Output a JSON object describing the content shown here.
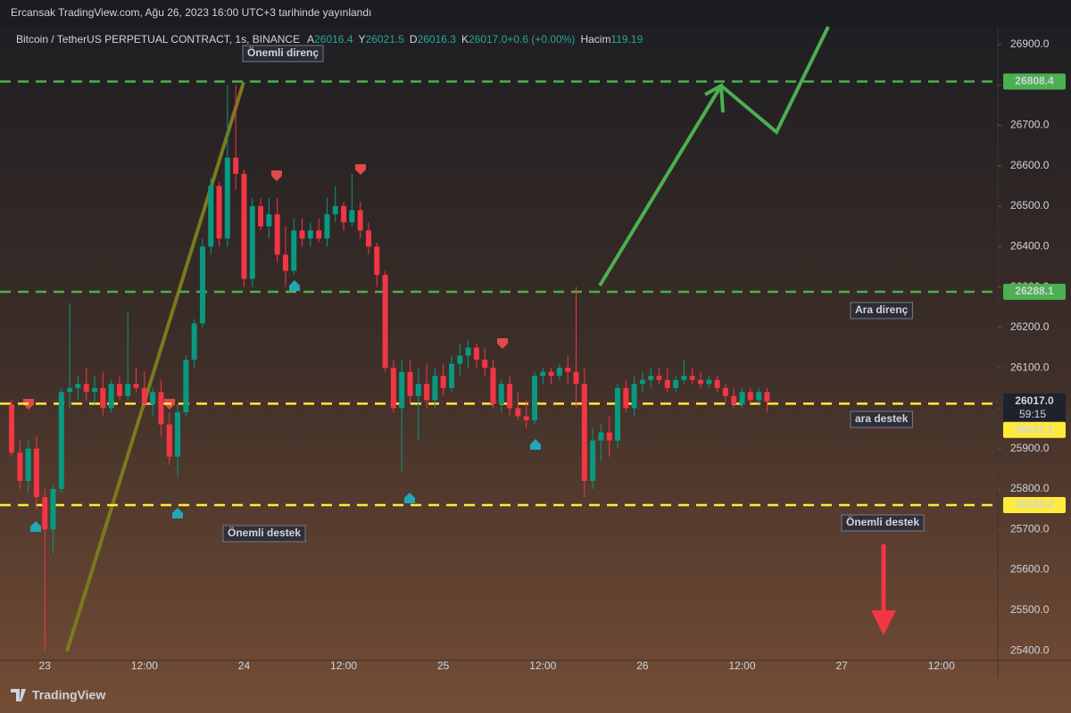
{
  "header": {
    "publisher": "Ercansak TradingView.com, Ağu 26, 2023 16:00 UTC+3 tarihinde yayınlandı"
  },
  "chart_data": {
    "type": "candlestick",
    "title": "Bitcoin / TetherUS PERPETUAL CONTRACT, 1s, BINANCE",
    "ohlc_legend": [
      {
        "key": "A",
        "text": "26016.4"
      },
      {
        "key": "Y",
        "text": "26021.5"
      },
      {
        "key": "D",
        "text": "26016.3"
      },
      {
        "key": "K",
        "text": "26017.0"
      },
      {
        "key": "",
        "text": "+0.6 (+0.00%)"
      },
      {
        "key": "Hacim",
        "text": "119.19"
      }
    ],
    "x": [
      -4,
      -3,
      -2,
      -1,
      0,
      1,
      2,
      3,
      4,
      5,
      6,
      7,
      8,
      9,
      10,
      11,
      12,
      13,
      14,
      15,
      16,
      17,
      18,
      19,
      20,
      21,
      22,
      23,
      24,
      25,
      26,
      27,
      28,
      29,
      30,
      31,
      32,
      33,
      34,
      35,
      36,
      37,
      38,
      39,
      40,
      41,
      42,
      43,
      44,
      45,
      46,
      47,
      48,
      49,
      50,
      51,
      52,
      53,
      54,
      55,
      56,
      57,
      58,
      59,
      60,
      61,
      62,
      63,
      64,
      65,
      66,
      67,
      68,
      69,
      70,
      71,
      72,
      73,
      74,
      75,
      76,
      77,
      78,
      79,
      80,
      81,
      82,
      83,
      84,
      85,
      86,
      87
    ],
    "open": [
      26010,
      25890,
      25820,
      25900,
      25780,
      25700,
      25800,
      26040,
      26050,
      26060,
      26040,
      26050,
      26000,
      26060,
      26030,
      26060,
      26050,
      26010,
      26040,
      25960,
      25880,
      25990,
      26120,
      26210,
      26400,
      26550,
      26420,
      26620,
      26580,
      26320,
      26500,
      26450,
      26480,
      26380,
      26340,
      26440,
      26420,
      26440,
      26420,
      26480,
      26500,
      26460,
      26490,
      26440,
      26400,
      26330,
      26100,
      26000,
      26090,
      26030,
      26060,
      26020,
      26080,
      26050,
      26110,
      26130,
      26150,
      26120,
      26100,
      26010,
      26060,
      26000,
      25980,
      25970,
      26080,
      26090,
      26080,
      26100,
      26090,
      26060,
      25820,
      25920,
      25940,
      25920,
      26050,
      26000,
      26060,
      26070,
      26080,
      26070,
      26050,
      26070,
      26080,
      26070,
      26060,
      26070,
      26050,
      26030,
      26010,
      26040,
      26020,
      26040
    ],
    "high": [
      26020,
      25920,
      25920,
      25930,
      25800,
      25810,
      26050,
      26260,
      26080,
      26100,
      26080,
      26090,
      26070,
      26080,
      26240,
      26100,
      26090,
      26050,
      26070,
      25990,
      26010,
      26130,
      26220,
      26420,
      26570,
      26560,
      26800,
      26800,
      26590,
      26520,
      26520,
      26520,
      26520,
      26450,
      26470,
      26470,
      26460,
      26470,
      26520,
      26550,
      26510,
      26580,
      26510,
      26460,
      26410,
      26340,
      26120,
      26120,
      26120,
      26100,
      26110,
      26100,
      26110,
      26130,
      26160,
      26170,
      26160,
      26150,
      26120,
      26070,
      26080,
      26040,
      26020,
      26090,
      26100,
      26100,
      26110,
      26130,
      26300,
      26100,
      25950,
      25960,
      25980,
      26060,
      26070,
      26080,
      26090,
      26100,
      26100,
      26100,
      26080,
      26120,
      26100,
      26090,
      26080,
      26080,
      26060,
      26050,
      26050,
      26050,
      26050,
      26050
    ],
    "low": [
      25880,
      25800,
      25790,
      25750,
      25400,
      25640,
      25790,
      26000,
      26020,
      26020,
      26010,
      25980,
      25990,
      26020,
      26020,
      26040,
      26000,
      25980,
      25930,
      25860,
      25830,
      25980,
      26100,
      26200,
      26380,
      26400,
      26400,
      26540,
      26300,
      26300,
      26440,
      26420,
      26360,
      26300,
      26330,
      26400,
      26400,
      26410,
      26400,
      26460,
      26440,
      26450,
      26420,
      26380,
      26300,
      26090,
      25990,
      25840,
      26010,
      25920,
      26000,
      26000,
      26030,
      26040,
      26080,
      26100,
      26100,
      26080,
      26000,
      25990,
      25980,
      25970,
      25950,
      25960,
      26060,
      26060,
      26070,
      26060,
      26000,
      25780,
      25800,
      25870,
      25880,
      25900,
      25990,
      25980,
      26040,
      26050,
      26060,
      26040,
      26040,
      26060,
      26060,
      26050,
      26050,
      26040,
      26010,
      26000,
      26000,
      26010,
      26010,
      25990
    ],
    "close": [
      25890,
      25820,
      25900,
      25780,
      25700,
      25800,
      26040,
      26050,
      26060,
      26040,
      26050,
      26000,
      26060,
      26030,
      26060,
      26050,
      26010,
      26040,
      25960,
      25880,
      25990,
      26120,
      26210,
      26400,
      26550,
      26420,
      26620,
      26580,
      26320,
      26500,
      26450,
      26480,
      26380,
      26340,
      26440,
      26420,
      26440,
      26420,
      26480,
      26500,
      26460,
      26490,
      26440,
      26400,
      26330,
      26100,
      26000,
      26090,
      26030,
      26060,
      26020,
      26080,
      26050,
      26110,
      26130,
      26150,
      26120,
      26100,
      26010,
      26060,
      26000,
      25980,
      25970,
      26080,
      26090,
      26080,
      26100,
      26090,
      26060,
      25820,
      25920,
      25940,
      25920,
      26050,
      26000,
      26060,
      26070,
      26080,
      26070,
      26050,
      26070,
      26080,
      26070,
      26060,
      26070,
      26050,
      26030,
      26010,
      26040,
      26020,
      26040,
      26017
    ],
    "up_color": "#089981",
    "down_color": "#f23645",
    "xlim": [
      -5.4,
      114.8
    ],
    "xticks": [
      {
        "value": 0,
        "label": "23"
      },
      {
        "value": 12,
        "label": "12:00"
      },
      {
        "value": 24,
        "label": "24"
      },
      {
        "value": 36,
        "label": "12:00"
      },
      {
        "value": 48,
        "label": "25"
      },
      {
        "value": 60,
        "label": "12:00"
      },
      {
        "value": 72,
        "label": "26"
      },
      {
        "value": 84,
        "label": "12:00"
      },
      {
        "value": 96,
        "label": "27"
      },
      {
        "value": 108,
        "label": "12:00"
      }
    ],
    "ylim": [
      25376,
      26944
    ],
    "yticks": [
      {
        "value": 25400,
        "label": "25400.0"
      },
      {
        "value": 25500,
        "label": "25500.0"
      },
      {
        "value": 25600,
        "label": "25600.0"
      },
      {
        "value": 25700,
        "label": "25700.0"
      },
      {
        "value": 25800,
        "label": "25800.0"
      },
      {
        "value": 25900,
        "label": "25900.0"
      },
      {
        "value": 26000,
        "label": "26000.0"
      },
      {
        "value": 26100,
        "label": "26100.0"
      },
      {
        "value": 26200,
        "label": "26200.0"
      },
      {
        "value": 26300,
        "label": "26300.0"
      },
      {
        "value": 26400,
        "label": "26400.0"
      },
      {
        "value": 26500,
        "label": "26500.0"
      },
      {
        "value": 26600,
        "label": "26600.0"
      },
      {
        "value": 26700,
        "label": "26700.0"
      },
      {
        "value": 26800,
        "label": "26800.0"
      },
      {
        "value": 26900,
        "label": "26900.0"
      }
    ],
    "levels": [
      {
        "value": 26808.4,
        "color": "#4caf50"
      },
      {
        "value": 26288.1,
        "color": "#4caf50"
      },
      {
        "value": 26011.1,
        "color": "#ffeb3b"
      },
      {
        "value": 25760.2,
        "color": "#ffeb3b"
      }
    ],
    "current_price": {
      "value": 26017,
      "label": "26017.0",
      "countdown": "59:15"
    },
    "annotations": [
      "Önemli direnç",
      "Ara direnç",
      "ara destek",
      "Önemli destek",
      "Önemli destek"
    ]
  },
  "footer": {
    "brand": "TradingView"
  }
}
